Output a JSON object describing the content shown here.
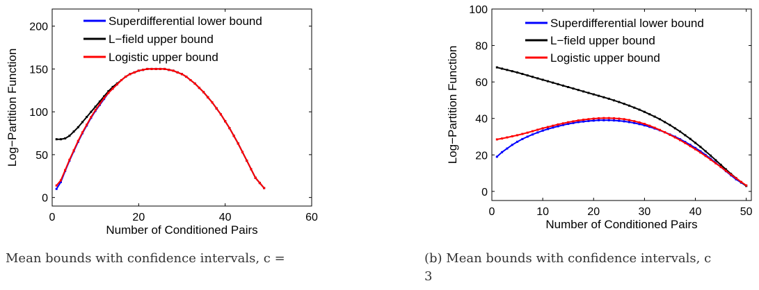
{
  "chart_data": [
    {
      "type": "line",
      "xlabel": "Number of Conditioned Pairs",
      "ylabel": "Log−Partition Function",
      "xlim": [
        0,
        60
      ],
      "ylim": [
        -10,
        220
      ],
      "xticks": [
        0,
        20,
        40,
        60
      ],
      "yticks": [
        0,
        50,
        100,
        150,
        200
      ],
      "grid": false,
      "legend_position": "top",
      "caption": "Mean bounds with confidence intervals, c =",
      "series": [
        {
          "name": "Superdifferential lower bound",
          "color": "#0000ff",
          "x": [
            1,
            2,
            3,
            4,
            5,
            6,
            7,
            8,
            9,
            10,
            11,
            12,
            13,
            14,
            15,
            16,
            17,
            18,
            19,
            20,
            21,
            22,
            23,
            24,
            25,
            26,
            27,
            28,
            29,
            30,
            31,
            32,
            33,
            34,
            35,
            36,
            37,
            38,
            39,
            40,
            41,
            42,
            43,
            44,
            45,
            46,
            47,
            48,
            49
          ],
          "y": [
            10,
            18,
            31,
            43,
            54,
            65,
            75,
            84,
            93,
            101,
            108,
            115,
            122,
            127,
            132,
            137,
            141,
            144,
            146,
            148,
            149,
            150,
            150,
            150,
            150,
            150,
            149,
            148,
            146,
            144,
            141,
            137,
            133,
            128,
            123,
            117,
            111,
            104,
            97,
            89,
            81,
            72,
            63,
            53,
            43,
            33,
            23,
            17,
            11
          ]
        },
        {
          "name": "L−field upper bound",
          "color": "#000000",
          "x": [
            1,
            2,
            3,
            4,
            5,
            6,
            7,
            8,
            9,
            10,
            11,
            12,
            13,
            14,
            15,
            16,
            17,
            18,
            19,
            20,
            21,
            22,
            23,
            24,
            25,
            26,
            27,
            28,
            29,
            30,
            31,
            32,
            33,
            34,
            35,
            36,
            37,
            38,
            39,
            40,
            41,
            42,
            43,
            44,
            45,
            46,
            47,
            48,
            49
          ],
          "y": [
            68,
            68,
            69,
            72,
            77,
            82,
            88,
            94,
            100,
            106,
            112,
            118,
            124,
            129,
            133,
            137,
            141,
            144,
            146,
            148,
            149,
            150,
            150,
            150,
            150,
            150,
            149,
            148,
            146,
            144,
            141,
            137,
            133,
            128,
            123,
            117,
            111,
            104,
            97,
            89,
            81,
            72,
            63,
            53,
            43,
            33,
            23,
            17,
            11
          ]
        },
        {
          "name": "Logistic upper bound",
          "color": "#ff0000",
          "x": [
            1,
            2,
            3,
            4,
            5,
            6,
            7,
            8,
            9,
            10,
            11,
            12,
            13,
            14,
            15,
            16,
            17,
            18,
            19,
            20,
            21,
            22,
            23,
            24,
            25,
            26,
            27,
            28,
            29,
            30,
            31,
            32,
            33,
            34,
            35,
            36,
            37,
            38,
            39,
            40,
            41,
            42,
            43,
            44,
            45,
            46,
            47,
            48,
            49
          ],
          "y": [
            14,
            20,
            32,
            44,
            55,
            66,
            76,
            85,
            94,
            102,
            109,
            116,
            122,
            127,
            132,
            137,
            141,
            144,
            146,
            148,
            149,
            150,
            150,
            150,
            150,
            150,
            149,
            148,
            146,
            144,
            141,
            137,
            133,
            128,
            123,
            117,
            111,
            104,
            97,
            89,
            81,
            72,
            63,
            53,
            43,
            33,
            23,
            17,
            11
          ]
        }
      ]
    },
    {
      "type": "line",
      "xlabel": "Number of Conditioned Pairs",
      "ylabel": "Log−Partition Function",
      "xlim": [
        0,
        51
      ],
      "ylim": [
        -5,
        100
      ],
      "xticks": [
        0,
        10,
        20,
        30,
        40,
        50
      ],
      "yticks": [
        0,
        20,
        40,
        60,
        80,
        100
      ],
      "grid": false,
      "legend_position": "top",
      "caption_line1": "(b) Mean bounds with confidence intervals, c",
      "caption_line2": "3",
      "series": [
        {
          "name": "Superdifferential lower bound",
          "color": "#0000ff",
          "x": [
            1,
            2,
            3,
            4,
            5,
            6,
            7,
            8,
            9,
            10,
            11,
            12,
            13,
            14,
            15,
            16,
            17,
            18,
            19,
            20,
            21,
            22,
            23,
            24,
            25,
            26,
            27,
            28,
            29,
            30,
            31,
            32,
            33,
            34,
            35,
            36,
            37,
            38,
            39,
            40,
            41,
            42,
            43,
            44,
            45,
            46,
            47,
            48,
            49,
            50
          ],
          "y": [
            19,
            21.5,
            23.5,
            25.5,
            27.2,
            28.7,
            30,
            31.2,
            32.3,
            33.3,
            34.2,
            35,
            35.7,
            36.4,
            37,
            37.5,
            38,
            38.3,
            38.6,
            38.8,
            39,
            39,
            39,
            38.9,
            38.7,
            38.4,
            38,
            37.5,
            36.9,
            36.2,
            35.4,
            34.5,
            33.5,
            32.4,
            31.2,
            30,
            28.6,
            27.1,
            25.5,
            23.8,
            22,
            20,
            17.9,
            15.7,
            13.4,
            11.1,
            8.8,
            6.6,
            4.8,
            3
          ]
        },
        {
          "name": "L−field upper bound",
          "color": "#000000",
          "x": [
            1,
            2,
            3,
            4,
            5,
            6,
            7,
            8,
            9,
            10,
            11,
            12,
            13,
            14,
            15,
            16,
            17,
            18,
            19,
            20,
            21,
            22,
            23,
            24,
            25,
            26,
            27,
            28,
            29,
            30,
            31,
            32,
            33,
            34,
            35,
            36,
            37,
            38,
            39,
            40,
            41,
            42,
            43,
            44,
            45,
            46,
            47,
            48,
            49,
            50
          ],
          "y": [
            68,
            67.3,
            66.6,
            65.9,
            65.2,
            64.4,
            63.6,
            62.8,
            62,
            61.2,
            60.4,
            59.6,
            58.8,
            58,
            57.2,
            56.4,
            55.6,
            54.8,
            54,
            53.2,
            52.4,
            51.6,
            50.8,
            49.9,
            49,
            48,
            47,
            45.9,
            44.8,
            43.6,
            42.3,
            41,
            39.6,
            38,
            36.4,
            34.6,
            32.8,
            30.8,
            28.8,
            26.6,
            24.4,
            22,
            19.6,
            17.1,
            14.6,
            12.1,
            9.6,
            7.3,
            5.1,
            3
          ]
        },
        {
          "name": "Logistic upper bound",
          "color": "#ff0000",
          "x": [
            1,
            2,
            3,
            4,
            5,
            6,
            7,
            8,
            9,
            10,
            11,
            12,
            13,
            14,
            15,
            16,
            17,
            18,
            19,
            20,
            21,
            22,
            23,
            24,
            25,
            26,
            27,
            28,
            29,
            30,
            31,
            32,
            33,
            34,
            35,
            36,
            37,
            38,
            39,
            40,
            41,
            42,
            43,
            44,
            45,
            46,
            47,
            48,
            49,
            50
          ],
          "y": [
            28.5,
            29,
            29.6,
            30.2,
            30.8,
            31.5,
            32.2,
            33,
            33.8,
            34.6,
            35.3,
            36,
            36.7,
            37.3,
            37.9,
            38.4,
            38.9,
            39.3,
            39.6,
            39.9,
            40.1,
            40.2,
            40.2,
            40.1,
            39.9,
            39.6,
            39.1,
            38.5,
            37.8,
            37,
            36,
            34.9,
            33.7,
            32.4,
            31,
            29.6,
            28.1,
            26.5,
            24.8,
            23.1,
            21.3,
            19.4,
            17.4,
            15.4,
            13.4,
            11.3,
            9.2,
            7.2,
            5.2,
            3.3
          ]
        }
      ]
    }
  ]
}
